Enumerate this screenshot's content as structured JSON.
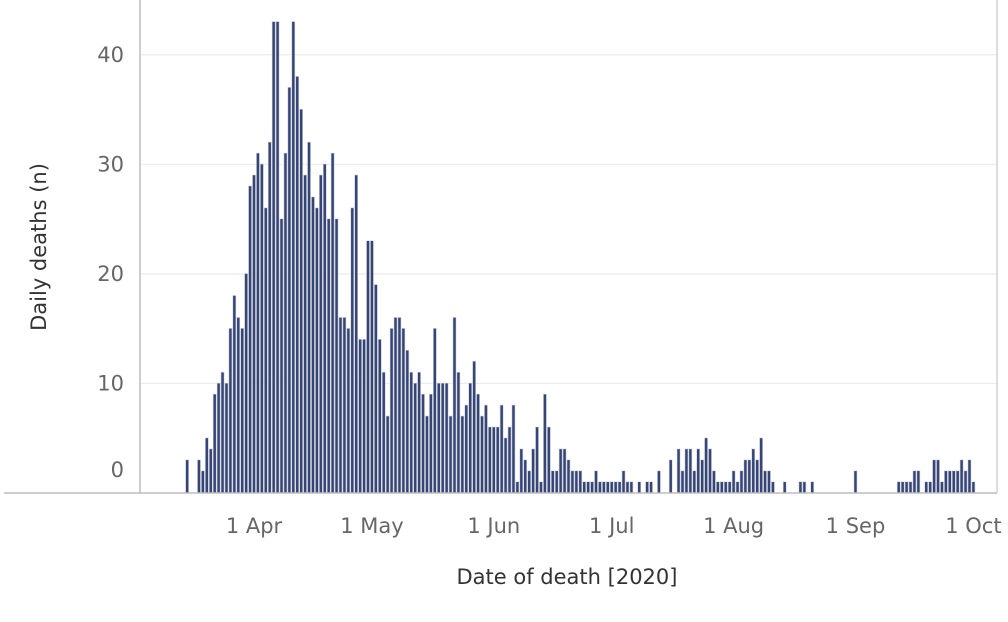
{
  "chart_data": {
    "type": "bar",
    "title": "",
    "xlabel": "Date of death [2020]",
    "ylabel": "Daily deaths (n)",
    "ylim": [
      0,
      45
    ],
    "xlim": [
      "2020-03-03",
      "2020-10-07"
    ],
    "grid": true,
    "legend": "none",
    "colors": {
      "bar": "#34457a",
      "outline": "#d2d2d2",
      "grid": "#ebebeb",
      "axis": "#bdbdbd"
    },
    "yticks": [
      {
        "value": 0,
        "label": "0"
      },
      {
        "value": 10,
        "label": "10"
      },
      {
        "value": 20,
        "label": "20"
      },
      {
        "value": 30,
        "label": "30"
      },
      {
        "value": 40,
        "label": "40"
      }
    ],
    "xticks": [
      {
        "date": "2020-04-01",
        "label": "1 Apr"
      },
      {
        "date": "2020-05-01",
        "label": "1 May"
      },
      {
        "date": "2020-06-01",
        "label": "1 Jun"
      },
      {
        "date": "2020-07-01",
        "label": "1 Jul"
      },
      {
        "date": "2020-08-01",
        "label": "1 Aug"
      },
      {
        "date": "2020-09-01",
        "label": "1 Sep"
      },
      {
        "date": "2020-10-01",
        "label": "1 Oct"
      }
    ],
    "x": [
      "2020-03-15",
      "2020-03-18",
      "2020-03-19",
      "2020-03-20",
      "2020-03-21",
      "2020-03-22",
      "2020-03-23",
      "2020-03-24",
      "2020-03-25",
      "2020-03-26",
      "2020-03-27",
      "2020-03-28",
      "2020-03-29",
      "2020-03-30",
      "2020-03-31",
      "2020-04-01",
      "2020-04-02",
      "2020-04-03",
      "2020-04-04",
      "2020-04-05",
      "2020-04-06",
      "2020-04-07",
      "2020-04-08",
      "2020-04-09",
      "2020-04-10",
      "2020-04-11",
      "2020-04-12",
      "2020-04-13",
      "2020-04-14",
      "2020-04-15",
      "2020-04-16",
      "2020-04-17",
      "2020-04-18",
      "2020-04-19",
      "2020-04-20",
      "2020-04-21",
      "2020-04-22",
      "2020-04-23",
      "2020-04-24",
      "2020-04-25",
      "2020-04-26",
      "2020-04-27",
      "2020-04-28",
      "2020-04-29",
      "2020-04-30",
      "2020-05-01",
      "2020-05-02",
      "2020-05-03",
      "2020-05-04",
      "2020-05-05",
      "2020-05-06",
      "2020-05-07",
      "2020-05-08",
      "2020-05-09",
      "2020-05-10",
      "2020-05-11",
      "2020-05-12",
      "2020-05-13",
      "2020-05-14",
      "2020-05-15",
      "2020-05-16",
      "2020-05-17",
      "2020-05-18",
      "2020-05-19",
      "2020-05-20",
      "2020-05-21",
      "2020-05-22",
      "2020-05-23",
      "2020-05-24",
      "2020-05-25",
      "2020-05-26",
      "2020-05-27",
      "2020-05-28",
      "2020-05-29",
      "2020-05-30",
      "2020-05-31",
      "2020-06-01",
      "2020-06-02",
      "2020-06-03",
      "2020-06-04",
      "2020-06-05",
      "2020-06-06",
      "2020-06-07",
      "2020-06-08",
      "2020-06-09",
      "2020-06-10",
      "2020-06-11",
      "2020-06-12",
      "2020-06-13",
      "2020-06-14",
      "2020-06-15",
      "2020-06-16",
      "2020-06-17",
      "2020-06-18",
      "2020-06-19",
      "2020-06-20",
      "2020-06-21",
      "2020-06-22",
      "2020-06-23",
      "2020-06-24",
      "2020-06-25",
      "2020-06-26",
      "2020-06-27",
      "2020-06-28",
      "2020-06-29",
      "2020-06-30",
      "2020-07-01",
      "2020-07-02",
      "2020-07-03",
      "2020-07-04",
      "2020-07-05",
      "2020-07-06",
      "2020-07-08",
      "2020-07-10",
      "2020-07-11",
      "2020-07-13",
      "2020-07-16",
      "2020-07-18",
      "2020-07-19",
      "2020-07-20",
      "2020-07-21",
      "2020-07-22",
      "2020-07-23",
      "2020-07-24",
      "2020-07-25",
      "2020-07-26",
      "2020-07-27",
      "2020-07-28",
      "2020-07-29",
      "2020-07-30",
      "2020-07-31",
      "2020-08-01",
      "2020-08-02",
      "2020-08-03",
      "2020-08-04",
      "2020-08-05",
      "2020-08-06",
      "2020-08-07",
      "2020-08-08",
      "2020-08-09",
      "2020-08-10",
      "2020-08-11",
      "2020-08-14",
      "2020-08-18",
      "2020-08-19",
      "2020-08-21",
      "2020-09-01",
      "2020-09-12",
      "2020-09-13",
      "2020-09-14",
      "2020-09-15",
      "2020-09-16",
      "2020-09-17",
      "2020-09-19",
      "2020-09-20",
      "2020-09-21",
      "2020-09-22",
      "2020-09-23",
      "2020-09-24",
      "2020-09-25",
      "2020-09-26",
      "2020-09-27",
      "2020-09-28",
      "2020-09-29",
      "2020-09-30",
      "2020-10-01"
    ],
    "values": [
      3,
      3,
      2,
      5,
      4,
      9,
      10,
      11,
      10,
      15,
      18,
      16,
      15,
      20,
      28,
      29,
      31,
      30,
      26,
      32,
      43,
      43,
      25,
      31,
      37,
      43,
      38,
      35,
      29,
      32,
      27,
      26,
      29,
      30,
      25,
      31,
      25,
      16,
      16,
      15,
      26,
      29,
      14,
      14,
      23,
      23,
      19,
      14,
      11,
      7,
      15,
      16,
      16,
      15,
      13,
      11,
      10,
      11,
      9,
      7,
      9,
      15,
      10,
      10,
      10,
      7,
      16,
      11,
      7,
      8,
      10,
      12,
      9,
      7,
      8,
      6,
      6,
      6,
      8,
      5,
      6,
      8,
      1,
      4,
      3,
      2,
      4,
      6,
      1,
      9,
      6,
      2,
      2,
      4,
      4,
      3,
      2,
      2,
      2,
      1,
      1,
      1,
      2,
      1,
      1,
      1,
      1,
      1,
      1,
      2,
      1,
      1,
      1,
      1,
      1,
      2,
      3,
      4,
      2,
      4,
      4,
      2,
      4,
      3,
      5,
      4,
      2,
      1,
      1,
      1,
      1,
      2,
      1,
      2,
      3,
      3,
      4,
      3,
      5,
      2,
      2,
      1,
      1,
      1,
      1,
      1,
      2,
      1,
      1,
      1,
      1,
      2,
      2,
      1,
      1,
      3,
      3,
      1,
      2,
      2,
      2,
      2,
      3,
      2,
      3,
      1
    ]
  }
}
